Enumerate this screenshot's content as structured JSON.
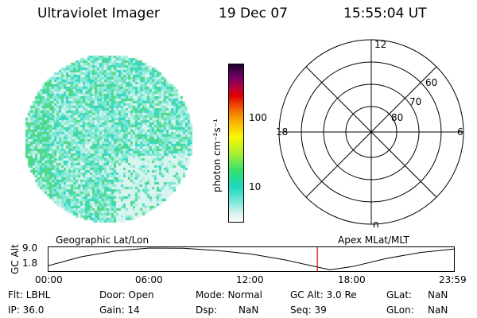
{
  "header": {
    "title": "Ultraviolet Imager",
    "date": "19 Dec 07",
    "time": "15:55:04 UT"
  },
  "colorbar": {
    "unit_label": "photon cm⁻²s⁻¹",
    "ticks": [
      "100",
      "10"
    ]
  },
  "polar": {
    "mlt_labels": {
      "top": "12",
      "right": "6",
      "bottom": "0",
      "left": "18"
    },
    "lat_labels": [
      "60",
      "70",
      "80"
    ]
  },
  "timeline": {
    "left_title": "Geographic Lat/Lon",
    "right_title": "Apex MLat/MLT",
    "ylabel": "GC Alt",
    "ytick_top": "9.0",
    "ytick_bottom": "1.8",
    "xticks": [
      "00:00",
      "06:00",
      "12:00",
      "18:00",
      "23:59"
    ],
    "marker_time": "15:55"
  },
  "chart_data": {
    "type": "line",
    "xlabel": "",
    "ylabel": "GC Alt",
    "x": [
      "00:00",
      "02:00",
      "04:00",
      "06:00",
      "08:00",
      "10:00",
      "12:00",
      "14:00",
      "16:00",
      "16:40",
      "18:00",
      "20:00",
      "22:00",
      "23:59"
    ],
    "series": [
      {
        "values": [
          1.8,
          5.5,
          7.8,
          9.0,
          8.9,
          8.0,
          6.6,
          4.2,
          1.2,
          0.2,
          1.5,
          4.8,
          7.2,
          8.6
        ]
      }
    ],
    "ylim": [
      0,
      9.0
    ],
    "marker_x": "15:55",
    "marker_color": "#d00000"
  },
  "info": {
    "flt": "Flt: LBHL",
    "ip": "IP: 36.0",
    "door": "Door: Open",
    "gain": "Gain: 14",
    "mode": "Mode: Normal",
    "dsp_label": "Dsp:",
    "dsp_value": "NaN",
    "gcalt": "GC Alt: 3.0 Re",
    "seq": "Seq: 39",
    "glat_label": "GLat:",
    "glat_value": "NaN",
    "glon_label": "GLon:",
    "glon_value": "NaN"
  },
  "colors": {
    "globe_base": "#7fe8d2",
    "globe_light": "#d8f4ef",
    "globe_green": "#4fd88a",
    "marker": "#d00000"
  }
}
